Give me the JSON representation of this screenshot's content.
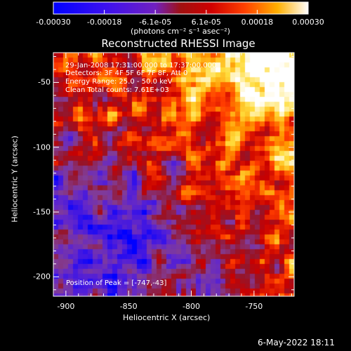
{
  "colorbar": {
    "tick_labels": [
      "-0.00030",
      "-0.00018",
      "-6.1e-05",
      "6.1e-05",
      "0.00018",
      "0.00030"
    ],
    "unit_label": "(photons cm⁻² s⁻¹ asec⁻²)"
  },
  "chart_data": {
    "type": "heatmap",
    "title": "Reconstructed RHESSI Image",
    "xlabel": "Heliocentric X (arcsec)",
    "ylabel": "Heliocentric Y (arcsec)",
    "xlim": [
      -910,
      -718
    ],
    "ylim": [
      -215,
      -27
    ],
    "x_ticks": [
      -900,
      -850,
      -800,
      -750
    ],
    "y_ticks": [
      -50,
      -100,
      -150,
      -200
    ],
    "color_range": [
      -0.0003,
      0.0003
    ],
    "colormap": "blue-purple-red-orange-yellow-white",
    "peak": [
      -747,
      -43
    ],
    "annotations": {
      "time": "29-Jan-2008 17:31:00.000 to 17:37:00.000",
      "detectors": "Detectors: 3F 4F 5F 6F 7F 8F, Att 0",
      "energy": "Energy Range: 25.0 - 50.0 keV",
      "clean": "Clean     Total counts: 7.61E+03",
      "peak_text": "Position of Peak = [-747,-43]"
    }
  },
  "footer": {
    "timestamp": "6-May-2022 18:11"
  }
}
